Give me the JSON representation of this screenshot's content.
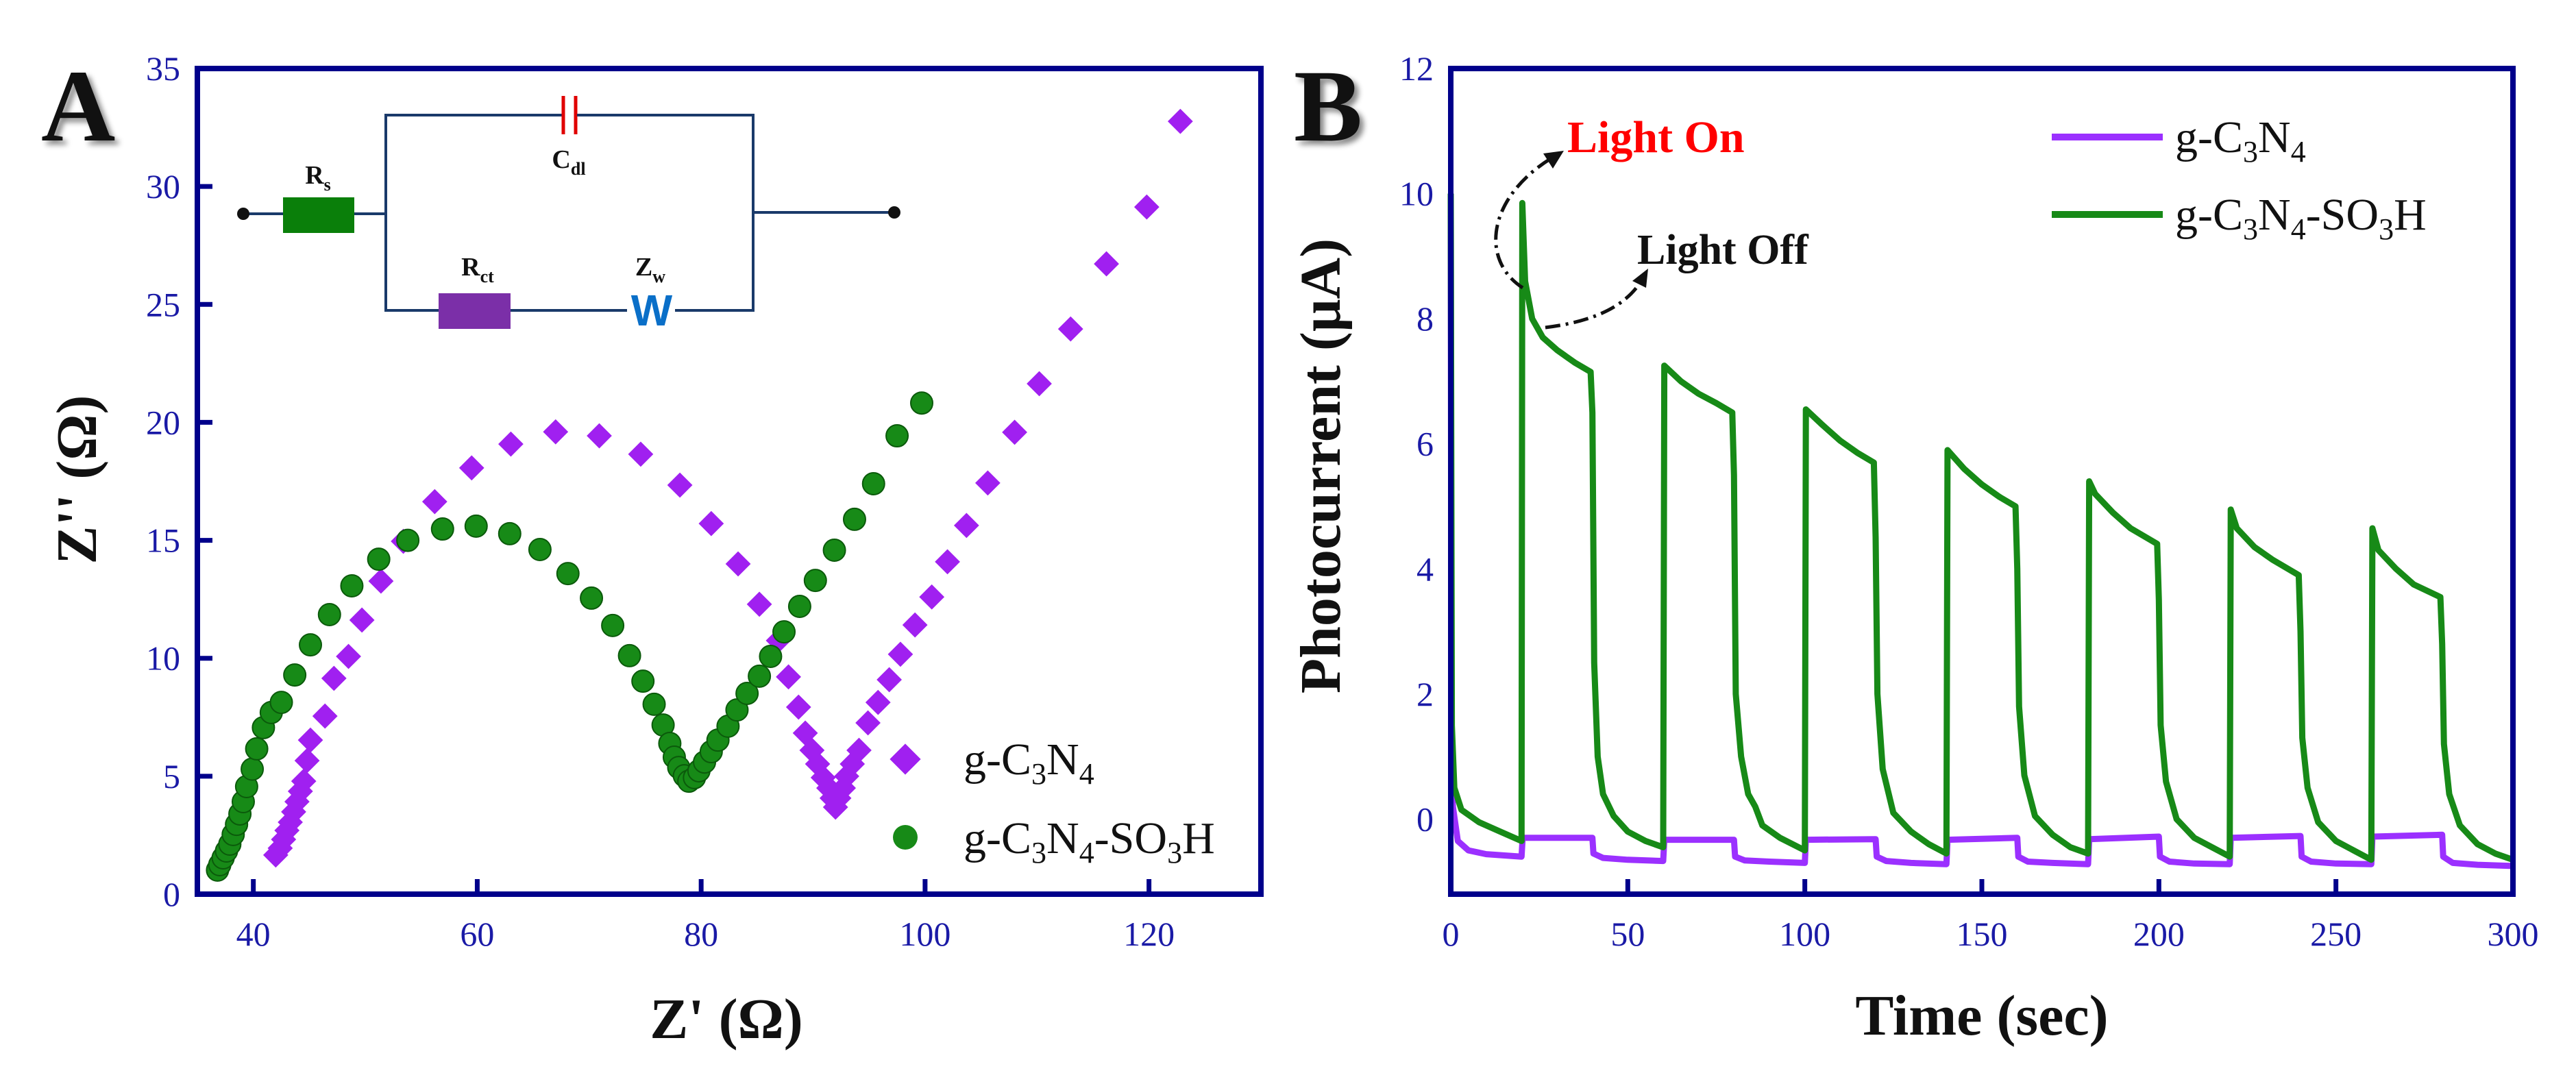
{
  "chart_data": [
    {
      "panel": "A",
      "type": "scatter",
      "xlabel": "Z' (Ω)",
      "ylabel": "Z'' (Ω)",
      "xlim": [
        35,
        130
      ],
      "ylim": [
        0,
        35
      ],
      "xticks": [
        40,
        60,
        80,
        100,
        120
      ],
      "yticks": [
        0,
        5,
        10,
        15,
        20,
        25,
        30,
        35
      ],
      "legend_position": "bottom-right",
      "inset_circuit": {
        "rs": "R",
        "rs_sub": "s",
        "cdl": "C",
        "cdl_sub": "dl",
        "rct": "R",
        "rct_sub": "ct",
        "zw": "Z",
        "zw_sub": "w",
        "warburg_symbol": "W"
      },
      "series": [
        {
          "name": "g-C3N4",
          "marker": "diamond",
          "color": "#a020f0",
          "x": [
            42.0,
            42.4,
            42.7,
            43.0,
            43.3,
            43.6,
            43.9,
            44.2,
            44.5,
            44.8,
            45.1,
            46.4,
            47.2,
            48.5,
            49.7,
            51.4,
            53.4,
            56.2,
            59.5,
            63.0,
            67.0,
            70.9,
            74.6,
            78.1,
            80.9,
            83.3,
            85.2,
            86.9,
            87.8,
            88.7,
            89.3,
            89.9,
            90.4,
            90.9,
            91.4,
            91.7,
            92.0,
            92.3,
            92.7,
            93.0,
            93.5,
            94.1,
            94.9,
            95.8,
            96.8,
            97.8,
            99.1,
            100.6,
            102.0,
            103.7,
            105.6,
            108.0,
            110.2,
            113.0,
            116.2,
            119.8,
            122.8
          ],
          "y": [
            1.66,
            1.95,
            2.32,
            2.7,
            3.05,
            3.49,
            3.92,
            4.36,
            4.79,
            5.66,
            6.53,
            7.55,
            9.15,
            10.08,
            11.62,
            13.27,
            14.96,
            16.64,
            18.07,
            19.08,
            19.6,
            19.43,
            18.65,
            17.34,
            15.71,
            14.0,
            12.29,
            10.75,
            9.21,
            7.93,
            6.83,
            6.1,
            5.52,
            4.94,
            4.5,
            4.07,
            3.69,
            4.07,
            4.5,
            5.0,
            5.52,
            6.1,
            7.26,
            8.13,
            9.09,
            10.17,
            11.41,
            12.6,
            14.09,
            15.63,
            17.43,
            19.58,
            21.64,
            23.96,
            26.72,
            29.13,
            32.76
          ]
        },
        {
          "name": "g-C3N4-SO3H",
          "marker": "circle",
          "color": "#178a17",
          "x": [
            36.8,
            37.0,
            37.3,
            37.6,
            37.9,
            38.2,
            38.5,
            38.8,
            39.1,
            39.4,
            39.9,
            40.3,
            40.9,
            41.6,
            42.5,
            43.7,
            45.1,
            46.8,
            48.8,
            51.2,
            53.8,
            56.9,
            59.9,
            62.9,
            65.6,
            68.1,
            70.2,
            72.1,
            73.6,
            74.8,
            75.8,
            76.6,
            77.2,
            77.6,
            78.0,
            78.5,
            78.9,
            79.4,
            79.8,
            80.3,
            80.9,
            81.5,
            82.4,
            83.2,
            84.1,
            85.2,
            86.2,
            87.4,
            88.8,
            90.2,
            91.9,
            93.7,
            95.4,
            97.5,
            99.7
          ],
          "y": [
            1.02,
            1.25,
            1.54,
            1.83,
            2.12,
            2.53,
            2.96,
            3.4,
            3.92,
            4.56,
            5.3,
            6.16,
            7.06,
            7.7,
            8.13,
            9.29,
            10.57,
            11.85,
            13.07,
            14.2,
            15.0,
            15.48,
            15.6,
            15.28,
            14.61,
            13.59,
            12.55,
            11.39,
            10.11,
            9.03,
            8.05,
            7.17,
            6.39,
            5.81,
            5.37,
            5.02,
            4.79,
            4.94,
            5.23,
            5.6,
            6.04,
            6.53,
            7.12,
            7.81,
            8.51,
            9.24,
            10.08,
            11.12,
            12.2,
            13.3,
            14.58,
            15.89,
            17.4,
            19.43,
            20.82
          ]
        }
      ]
    },
    {
      "panel": "B",
      "type": "line",
      "xlabel": "Time (sec)",
      "ylabel": "Photocurrent (μA)",
      "xlim": [
        0,
        300
      ],
      "ylim": [
        -1.2,
        12
      ],
      "xticks": [
        0,
        50,
        100,
        150,
        200,
        250,
        300
      ],
      "yticks": [
        0,
        2,
        4,
        6,
        8,
        10,
        12
      ],
      "legend_position": "top-right",
      "annotations": [
        "Light On",
        "Light Off"
      ],
      "annotation_colors": [
        "#ff0000",
        "#111111"
      ],
      "series": [
        {
          "name": "g-C3N4",
          "color": "#9b30ff",
          "points": [
            [
              0,
              10
            ],
            [
              0.2,
              1.0
            ],
            [
              0.6,
              0.2
            ],
            [
              2,
              -0.35
            ],
            [
              5,
              -0.5
            ],
            [
              10,
              -0.56
            ],
            [
              20,
              -0.6
            ],
            [
              20.3,
              -0.3
            ],
            [
              40,
              -0.3
            ],
            [
              40.3,
              -0.55
            ],
            [
              43,
              -0.62
            ],
            [
              50,
              -0.65
            ],
            [
              60,
              -0.67
            ],
            [
              60.3,
              -0.33
            ],
            [
              80,
              -0.33
            ],
            [
              80.3,
              -0.6
            ],
            [
              83,
              -0.66
            ],
            [
              90,
              -0.68
            ],
            [
              100,
              -0.7
            ],
            [
              100.3,
              -0.33
            ],
            [
              120,
              -0.32
            ],
            [
              120.3,
              -0.6
            ],
            [
              123,
              -0.67
            ],
            [
              130,
              -0.7
            ],
            [
              140,
              -0.72
            ],
            [
              140.3,
              -0.33
            ],
            [
              160,
              -0.3
            ],
            [
              160.3,
              -0.6
            ],
            [
              163,
              -0.68
            ],
            [
              170,
              -0.7
            ],
            [
              180,
              -0.72
            ],
            [
              180.3,
              -0.32
            ],
            [
              200,
              -0.28
            ],
            [
              200.3,
              -0.6
            ],
            [
              203,
              -0.68
            ],
            [
              210,
              -0.71
            ],
            [
              220,
              -0.72
            ],
            [
              220.3,
              -0.3
            ],
            [
              240,
              -0.27
            ],
            [
              240.3,
              -0.6
            ],
            [
              243,
              -0.68
            ],
            [
              250,
              -0.71
            ],
            [
              260,
              -0.72
            ],
            [
              260.3,
              -0.28
            ],
            [
              280,
              -0.25
            ],
            [
              280.3,
              -0.6
            ],
            [
              283,
              -0.7
            ],
            [
              290,
              -0.73
            ],
            [
              300,
              -0.75
            ]
          ]
        },
        {
          "name": "g-C3N4-SO3H",
          "color": "#178a17",
          "points": [
            [
              0,
              10
            ],
            [
              0.3,
              1.5
            ],
            [
              1,
              0.5
            ],
            [
              3,
              0.15
            ],
            [
              8,
              -0.05
            ],
            [
              14,
              -0.2
            ],
            [
              20,
              -0.35
            ],
            [
              20.2,
              9.85
            ],
            [
              21,
              8.6
            ],
            [
              23,
              8.0
            ],
            [
              26,
              7.7
            ],
            [
              30,
              7.5
            ],
            [
              35,
              7.3
            ],
            [
              39.5,
              7.15
            ],
            [
              40,
              6.5
            ],
            [
              40.5,
              2.5
            ],
            [
              41.5,
              1.0
            ],
            [
              43,
              0.4
            ],
            [
              46,
              0.05
            ],
            [
              50,
              -0.2
            ],
            [
              55,
              -0.35
            ],
            [
              60,
              -0.45
            ],
            [
              60.3,
              7.25
            ],
            [
              65,
              7.0
            ],
            [
              70,
              6.8
            ],
            [
              75,
              6.65
            ],
            [
              79.5,
              6.5
            ],
            [
              80,
              5.5
            ],
            [
              80.5,
              2.0
            ],
            [
              82,
              1.0
            ],
            [
              84,
              0.4
            ],
            [
              86,
              0.2
            ],
            [
              88,
              -0.1
            ],
            [
              93,
              -0.3
            ],
            [
              100,
              -0.5
            ],
            [
              100.3,
              6.55
            ],
            [
              105,
              6.3
            ],
            [
              110,
              6.05
            ],
            [
              115,
              5.85
            ],
            [
              119.5,
              5.7
            ],
            [
              120,
              4.5
            ],
            [
              120.5,
              2.0
            ],
            [
              122,
              0.8
            ],
            [
              125,
              0.1
            ],
            [
              130,
              -0.2
            ],
            [
              135,
              -0.4
            ],
            [
              140,
              -0.55
            ],
            [
              140.3,
              5.9
            ],
            [
              145,
              5.6
            ],
            [
              150,
              5.35
            ],
            [
              155,
              5.15
            ],
            [
              159.5,
              5.0
            ],
            [
              160,
              4.0
            ],
            [
              160.5,
              1.8
            ],
            [
              162,
              0.7
            ],
            [
              165,
              0.05
            ],
            [
              170,
              -0.25
            ],
            [
              175,
              -0.45
            ],
            [
              180,
              -0.55
            ],
            [
              180.3,
              5.4
            ],
            [
              182,
              5.2
            ],
            [
              187,
              4.9
            ],
            [
              192,
              4.65
            ],
            [
              199.5,
              4.4
            ],
            [
              200,
              3.5
            ],
            [
              200.5,
              1.5
            ],
            [
              202,
              0.6
            ],
            [
              205,
              0.0
            ],
            [
              210,
              -0.3
            ],
            [
              215,
              -0.45
            ],
            [
              220,
              -0.6
            ],
            [
              220.3,
              4.95
            ],
            [
              222,
              4.65
            ],
            [
              227,
              4.35
            ],
            [
              232,
              4.15
            ],
            [
              239.5,
              3.9
            ],
            [
              240,
              3.0
            ],
            [
              240.5,
              1.3
            ],
            [
              242,
              0.5
            ],
            [
              245,
              -0.05
            ],
            [
              250,
              -0.35
            ],
            [
              255,
              -0.5
            ],
            [
              260,
              -0.65
            ],
            [
              260.3,
              4.65
            ],
            [
              262,
              4.3
            ],
            [
              267,
              4.0
            ],
            [
              272,
              3.75
            ],
            [
              279.5,
              3.55
            ],
            [
              280,
              2.8
            ],
            [
              280.5,
              1.2
            ],
            [
              282,
              0.4
            ],
            [
              285,
              -0.1
            ],
            [
              290,
              -0.4
            ],
            [
              295,
              -0.55
            ],
            [
              300,
              -0.65
            ]
          ]
        }
      ]
    }
  ],
  "panel_labels": [
    "A",
    "B"
  ],
  "colors": {
    "axis": "#00008b",
    "tick_text": "#1a1aa6",
    "rs_box": "#0a7f0a",
    "rct_box": "#7b2fa8",
    "capacitor": "#e00000",
    "warburg": "#0a6fc8"
  }
}
